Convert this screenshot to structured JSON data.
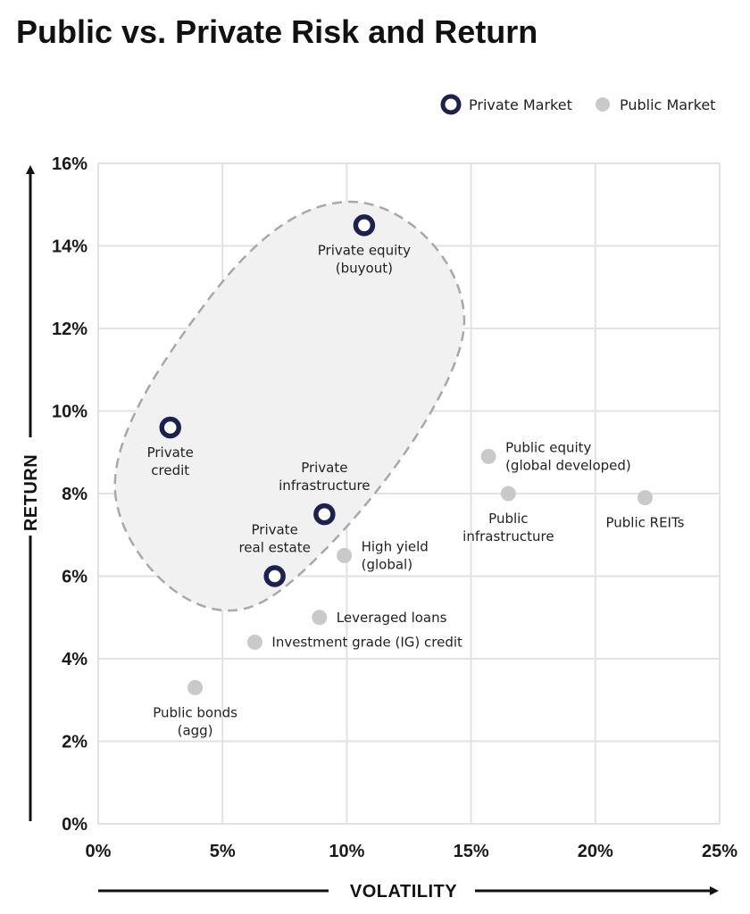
{
  "chart_data": {
    "type": "scatter",
    "title": "Public vs. Private Risk and Return",
    "xlabel": "VOLATILITY",
    "ylabel": "RETURN",
    "xlim": [
      0,
      25
    ],
    "ylim": [
      0,
      16
    ],
    "x_ticks": [
      0,
      5,
      10,
      15,
      20,
      25
    ],
    "x_tick_labels": [
      "0%",
      "5%",
      "10%",
      "15%",
      "20%",
      "25%"
    ],
    "y_ticks": [
      0,
      2,
      4,
      6,
      8,
      10,
      12,
      14,
      16
    ],
    "y_tick_labels": [
      "0%",
      "2%",
      "4%",
      "6%",
      "8%",
      "10%",
      "12%",
      "14%",
      "16%"
    ],
    "grid": true,
    "legend_position": "top-right",
    "legend": [
      {
        "name": "Private Market",
        "color": "#1c2150"
      },
      {
        "name": "Public Market",
        "color": "#c9c9c9"
      }
    ],
    "series": [
      {
        "name": "Private Market",
        "color": "#1c2150",
        "points": [
          {
            "label_lines": [
              "Private equity",
              "(buyout)"
            ],
            "x": 10.7,
            "y": 14.5,
            "label_pos": "below"
          },
          {
            "label_lines": [
              "Private",
              "credit"
            ],
            "x": 2.9,
            "y": 9.6,
            "label_pos": "below"
          },
          {
            "label_lines": [
              "Private",
              "infrastructure"
            ],
            "x": 9.1,
            "y": 7.5,
            "label_pos": "above"
          },
          {
            "label_lines": [
              "Private",
              "real estate"
            ],
            "x": 7.1,
            "y": 6.0,
            "label_pos": "above"
          }
        ]
      },
      {
        "name": "Public Market",
        "color": "#c9c9c9",
        "points": [
          {
            "label_lines": [
              "Public equity",
              "(global developed)"
            ],
            "x": 15.7,
            "y": 8.9,
            "label_pos": "right"
          },
          {
            "label_lines": [
              "Public",
              "infrastructure"
            ],
            "x": 16.5,
            "y": 8.0,
            "label_pos": "below"
          },
          {
            "label_lines": [
              "Public REITs"
            ],
            "x": 22.0,
            "y": 7.9,
            "label_pos": "below"
          },
          {
            "label_lines": [
              "High yield",
              "(global)"
            ],
            "x": 9.9,
            "y": 6.5,
            "label_pos": "right"
          },
          {
            "label_lines": [
              "Leveraged loans"
            ],
            "x": 8.9,
            "y": 5.0,
            "label_pos": "right"
          },
          {
            "label_lines": [
              "Investment grade (IG) credit"
            ],
            "x": 6.3,
            "y": 4.4,
            "label_pos": "right"
          },
          {
            "label_lines": [
              "Public bonds",
              "(agg)"
            ],
            "x": 3.9,
            "y": 3.3,
            "label_pos": "below"
          }
        ]
      }
    ]
  }
}
